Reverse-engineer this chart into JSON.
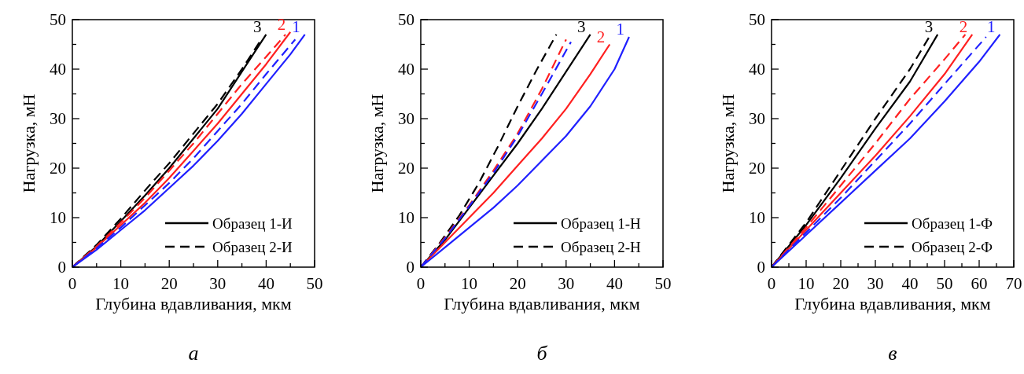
{
  "chart_data": [
    {
      "type": "line",
      "xlabel": "Глубина вдавливания, мкм",
      "ylabel": "Нагрузка, мН",
      "xlim": [
        0,
        50
      ],
      "ylim": [
        0,
        50
      ],
      "xticks": [
        0,
        {
          "value": 5,
          "label": null
        },
        10,
        {
          "value": 15,
          "label": null
        },
        20,
        {
          "value": 25,
          "label": null
        },
        30,
        {
          "value": 35,
          "label": null
        },
        40,
        {
          "value": 45,
          "label": null
        },
        50
      ],
      "yticks": [
        0,
        {
          "value": 5,
          "label": null
        },
        10,
        {
          "value": 15,
          "label": null
        },
        20,
        {
          "value": 25,
          "label": null
        },
        30,
        {
          "value": 35,
          "label": null
        },
        40,
        {
          "value": 45,
          "label": null
        },
        50
      ],
      "grid": false,
      "legend": "bottom right",
      "marker": "none",
      "series": [
        {
          "name": "Образец 1-И",
          "color": "#000000",
          "line_style": "solid",
          "x": [
            0,
            5,
            10,
            15,
            20,
            25,
            30,
            35,
            40
          ],
          "values": [
            0,
            4.2,
            9.3,
            14.5,
            20,
            26,
            32,
            39.5,
            47
          ]
        },
        {
          "name": "Образец 2-И",
          "color": "#000000",
          "line_style": "dashed",
          "x": [
            0,
            5,
            10,
            15,
            20,
            25,
            30,
            35,
            39
          ],
          "values": [
            0,
            4.5,
            9.8,
            15.5,
            21,
            27,
            33,
            40,
            46
          ]
        },
        {
          "color": "#ff2020",
          "line_style": "solid",
          "x": [
            0,
            5,
            10,
            15,
            20,
            25,
            30,
            35,
            40,
            45
          ],
          "values": [
            0,
            4,
            8.5,
            13,
            18,
            23.5,
            29,
            35,
            41,
            47.5
          ]
        },
        {
          "color": "#ff2020",
          "line_style": "dashed",
          "x": [
            0,
            5,
            10,
            15,
            20,
            25,
            30,
            35,
            40,
            44
          ],
          "values": [
            0,
            4.2,
            9,
            14,
            19.5,
            25,
            31,
            37,
            42.5,
            47
          ]
        },
        {
          "color": "#2020ff",
          "line_style": "solid",
          "x": [
            0,
            5,
            10,
            15,
            20,
            25,
            30,
            35,
            40,
            45,
            48
          ],
          "values": [
            0,
            3.5,
            7.5,
            11.5,
            16,
            20.5,
            25.5,
            31,
            37,
            43,
            47
          ]
        },
        {
          "color": "#2020ff",
          "line_style": "dashed",
          "x": [
            0,
            5,
            10,
            15,
            20,
            25,
            30,
            35,
            40,
            46
          ],
          "values": [
            0,
            3.8,
            8,
            12.5,
            17,
            22,
            27.5,
            33,
            39,
            46
          ]
        }
      ],
      "annotations": [
        {
          "text": "3",
          "x": 40,
          "y": 47
        },
        {
          "text": "2",
          "x": 45,
          "y": 47.5
        },
        {
          "text": "1",
          "x": 48,
          "y": 47
        },
        "а"
      ]
    },
    {
      "type": "line",
      "xlabel": "Глубина вдавливания, мкм",
      "ylabel": "Нагрузка, мН",
      "xlim": [
        0,
        50
      ],
      "ylim": [
        0,
        50
      ],
      "xticks": [
        0,
        {
          "value": 5,
          "label": null
        },
        10,
        {
          "value": 15,
          "label": null
        },
        20,
        {
          "value": 25,
          "label": null
        },
        30,
        {
          "value": 35,
          "label": null
        },
        40,
        {
          "value": 45,
          "label": null
        },
        50
      ],
      "yticks": [
        0,
        {
          "value": 5,
          "label": null
        },
        10,
        {
          "value": 15,
          "label": null
        },
        20,
        {
          "value": 25,
          "label": null
        },
        30,
        {
          "value": 35,
          "label": null
        },
        40,
        {
          "value": 45,
          "label": null
        },
        50
      ],
      "grid": false,
      "legend": "bottom right",
      "marker": "none",
      "series": [
        {
          "name": "Образец 1-Н",
          "color": "#000000",
          "line_style": "solid",
          "x": [
            0,
            5,
            10,
            15,
            20,
            25,
            30,
            35
          ],
          "values": [
            0,
            5.5,
            12,
            18.5,
            25,
            32,
            39.5,
            47
          ]
        },
        {
          "name": "Образец 2-Н",
          "color": "#000000",
          "line_style": "dashed",
          "x": [
            0,
            4,
            8,
            12,
            16,
            20,
            24,
            28
          ],
          "values": [
            0,
            5,
            10.5,
            17,
            24.5,
            32.5,
            40,
            47
          ]
        },
        {
          "color": "#ff2020",
          "line_style": "solid",
          "x": [
            0,
            5,
            10,
            15,
            20,
            25,
            30,
            35,
            39
          ],
          "values": [
            0,
            5,
            10,
            15,
            20.5,
            26,
            32,
            39,
            45
          ]
        },
        {
          "color": "#ff2020",
          "line_style": "dashed",
          "x": [
            0,
            5,
            10,
            15,
            20,
            25,
            30
          ],
          "values": [
            0,
            6,
            12.5,
            19.5,
            27,
            36,
            46
          ]
        },
        {
          "color": "#2020ff",
          "line_style": "solid",
          "x": [
            0,
            5,
            10,
            15,
            20,
            25,
            30,
            35,
            40,
            43
          ],
          "values": [
            0,
            4,
            8,
            12,
            16.5,
            21.5,
            26.5,
            32.5,
            40,
            46.5
          ]
        },
        {
          "color": "#2020ff",
          "line_style": "dashed",
          "x": [
            0,
            5,
            10,
            15,
            20,
            25,
            31
          ],
          "values": [
            0,
            5.8,
            12.3,
            19,
            26.5,
            35,
            45.5
          ]
        }
      ],
      "annotations": [
        {
          "text": "3",
          "x": 35,
          "y": 47
        },
        {
          "text": "2",
          "x": 39,
          "y": 45
        },
        {
          "text": "1",
          "x": 43,
          "y": 46.5
        },
        "б"
      ]
    },
    {
      "type": "line",
      "xlabel": "Глубина вдавливания, мкм",
      "ylabel": "Нагрузка, мН",
      "xlim": [
        0,
        70
      ],
      "ylim": [
        0,
        50
      ],
      "xticks": [
        0,
        {
          "value": 5,
          "label": null
        },
        10,
        {
          "value": 15,
          "label": null
        },
        20,
        {
          "value": 25,
          "label": null
        },
        30,
        {
          "value": 35,
          "label": null
        },
        40,
        {
          "value": 45,
          "label": null
        },
        50,
        {
          "value": 55,
          "label": null
        },
        60,
        {
          "value": 65,
          "label": null
        },
        70
      ],
      "yticks": [
        0,
        {
          "value": 5,
          "label": null
        },
        10,
        {
          "value": 15,
          "label": null
        },
        20,
        {
          "value": 25,
          "label": null
        },
        30,
        {
          "value": 35,
          "label": null
        },
        40,
        {
          "value": 45,
          "label": null
        },
        50
      ],
      "grid": false,
      "legend": "bottom right",
      "marker": "none",
      "series": [
        {
          "name": "Образец 1-Ф",
          "color": "#000000",
          "line_style": "solid",
          "x": [
            0,
            10,
            20,
            30,
            40,
            48
          ],
          "values": [
            0,
            8.5,
            18,
            28,
            37.5,
            47
          ]
        },
        {
          "name": "Образец 2-Ф",
          "color": "#000000",
          "line_style": "dashed",
          "x": [
            0,
            10,
            20,
            30,
            40,
            46
          ],
          "values": [
            0,
            9,
            19.5,
            30,
            40,
            47
          ]
        },
        {
          "color": "#ff2020",
          "line_style": "solid",
          "x": [
            0,
            10,
            20,
            30,
            40,
            50,
            58
          ],
          "values": [
            0,
            7.5,
            15,
            22.5,
            30.5,
            39,
            47
          ]
        },
        {
          "color": "#ff2020",
          "line_style": "dashed",
          "x": [
            0,
            10,
            20,
            30,
            40,
            50,
            56
          ],
          "values": [
            0,
            8,
            16.5,
            25,
            34,
            42,
            47
          ]
        },
        {
          "color": "#2020ff",
          "line_style": "solid",
          "x": [
            0,
            10,
            20,
            30,
            40,
            50,
            60,
            66
          ],
          "values": [
            0,
            6.5,
            13,
            19.5,
            26,
            33.5,
            41.5,
            47
          ]
        },
        {
          "color": "#2020ff",
          "line_style": "dashed",
          "x": [
            0,
            10,
            20,
            30,
            40,
            50,
            62
          ],
          "values": [
            0,
            7,
            14,
            21.5,
            29,
            37,
            46.5
          ]
        }
      ],
      "annotations": [
        {
          "text": "3",
          "x": 48,
          "y": 47
        },
        {
          "text": "2",
          "x": 58,
          "y": 47
        },
        {
          "text": "1",
          "x": 66,
          "y": 47
        },
        "в"
      ]
    }
  ]
}
